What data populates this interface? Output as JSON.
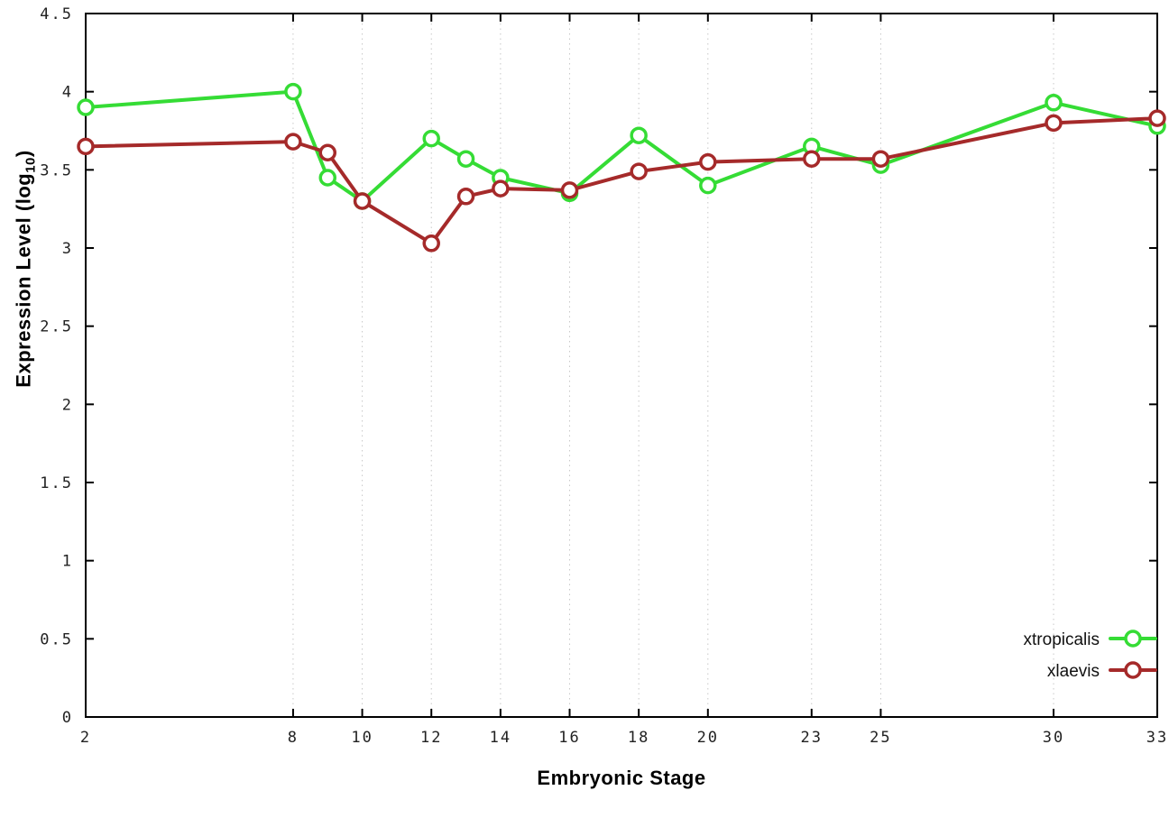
{
  "chart_data": {
    "type": "line",
    "title": "",
    "xlabel": "Embryonic Stage",
    "ylabel": {
      "pre": "Expression Level (log",
      "sub": "10",
      "post": ")"
    },
    "xlim": [
      2,
      33
    ],
    "ylim": [
      0,
      4.5
    ],
    "xticks": [
      2,
      8,
      10,
      12,
      14,
      16,
      18,
      20,
      23,
      25,
      30,
      33
    ],
    "xtick_labels": [
      "2",
      "8",
      "10",
      "12",
      "14",
      "16",
      "18",
      "20",
      "23",
      "25",
      "30",
      "33"
    ],
    "yticks": [
      0,
      0.5,
      1,
      1.5,
      2,
      2.5,
      3,
      3.5,
      4,
      4.5
    ],
    "ytick_labels": [
      "0",
      "0.5",
      "1",
      "1.5",
      "2",
      "2.5",
      "3",
      "3.5",
      "4",
      "4.5"
    ],
    "grid": "vertical-dotted",
    "grid_color": "#c8c8c8",
    "border_color": "#000000",
    "legend_position": "bottom-right",
    "x": [
      2,
      8,
      9,
      10,
      12,
      13,
      14,
      16,
      18,
      20,
      23,
      25,
      30,
      33
    ],
    "series": [
      {
        "name": "xtropicalis",
        "color": "#35dc35",
        "values": [
          3.9,
          4.0,
          3.45,
          3.3,
          3.7,
          3.57,
          3.45,
          3.35,
          3.72,
          3.4,
          3.65,
          3.53,
          3.93,
          3.78
        ]
      },
      {
        "name": "xlaevis",
        "color": "#a52a2a",
        "values": [
          3.65,
          3.68,
          3.61,
          3.3,
          3.03,
          3.33,
          3.38,
          3.37,
          3.49,
          3.55,
          3.57,
          3.57,
          3.8,
          3.83
        ]
      }
    ]
  }
}
